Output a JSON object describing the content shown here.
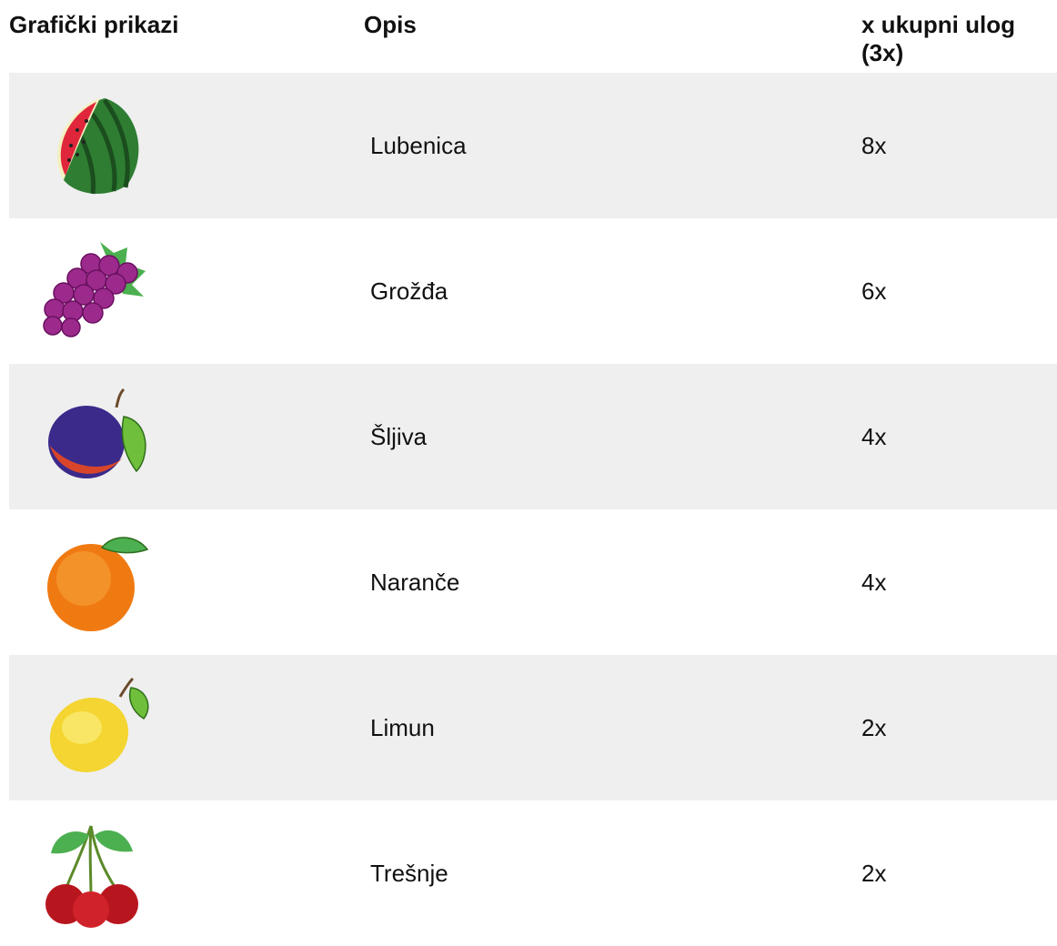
{
  "table": {
    "headers": [
      "Grafički prikazi",
      "Opis",
      "x ukupni ulog (3x)"
    ],
    "rows": [
      {
        "name": "Lubenica",
        "payout": "8x"
      },
      {
        "name": "Grožđa",
        "payout": "6x"
      },
      {
        "name": "Šljiva",
        "payout": "4x"
      },
      {
        "name": "Naranče",
        "payout": "4x"
      },
      {
        "name": "Limun",
        "payout": "2x"
      },
      {
        "name": "Trešnje",
        "payout": "2x"
      }
    ]
  }
}
